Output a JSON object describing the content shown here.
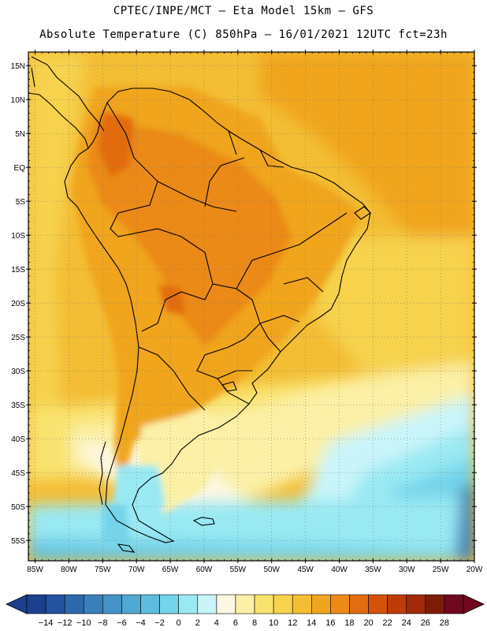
{
  "header": {
    "line1": "CPTEC/INPE/MCT –  Eta Model 15km – GFS",
    "line2": "Absolute Temperature (C) 850hPa – 16/01/2021 12UTC fct=23h"
  },
  "map": {
    "lat_ticks": [
      "15N",
      "10N",
      "5N",
      "EQ",
      "5S",
      "10S",
      "15S",
      "20S",
      "25S",
      "30S",
      "35S",
      "40S",
      "45S",
      "50S",
      "55S"
    ],
    "lon_ticks": [
      "85W",
      "80W",
      "75W",
      "70W",
      "65W",
      "60W",
      "55W",
      "50W",
      "45W",
      "40W",
      "35W",
      "30W",
      "25W",
      "20W"
    ],
    "lat_range": [
      "17N",
      "58S"
    ],
    "lon_range": [
      "86W",
      "20W"
    ],
    "grid": "dotted"
  },
  "colorbar": {
    "labels": [
      "-14",
      "-12",
      "-10",
      "-8",
      "-6",
      "-4",
      "-2",
      "0",
      "2",
      "4",
      "6",
      "8",
      "10",
      "12",
      "14",
      "16",
      "18",
      "20",
      "22",
      "24",
      "26",
      "28"
    ],
    "colors": [
      "#1c3f8e",
      "#24529f",
      "#2d68ad",
      "#3a7fbc",
      "#4593c6",
      "#4fa8d2",
      "#5ebddf",
      "#74d4ea",
      "#99e9f3",
      "#c9f5fa",
      "#fdf8e3",
      "#fbf0a6",
      "#f9e36f",
      "#f6d24d",
      "#f3bd34",
      "#f0a51f",
      "#eb8a16",
      "#e26c10",
      "#d4520c",
      "#bf3c0a",
      "#a32a08",
      "#7e1b06",
      "#70081f"
    ],
    "under_color": "#1c3f8e",
    "over_color": "#70081f"
  }
}
